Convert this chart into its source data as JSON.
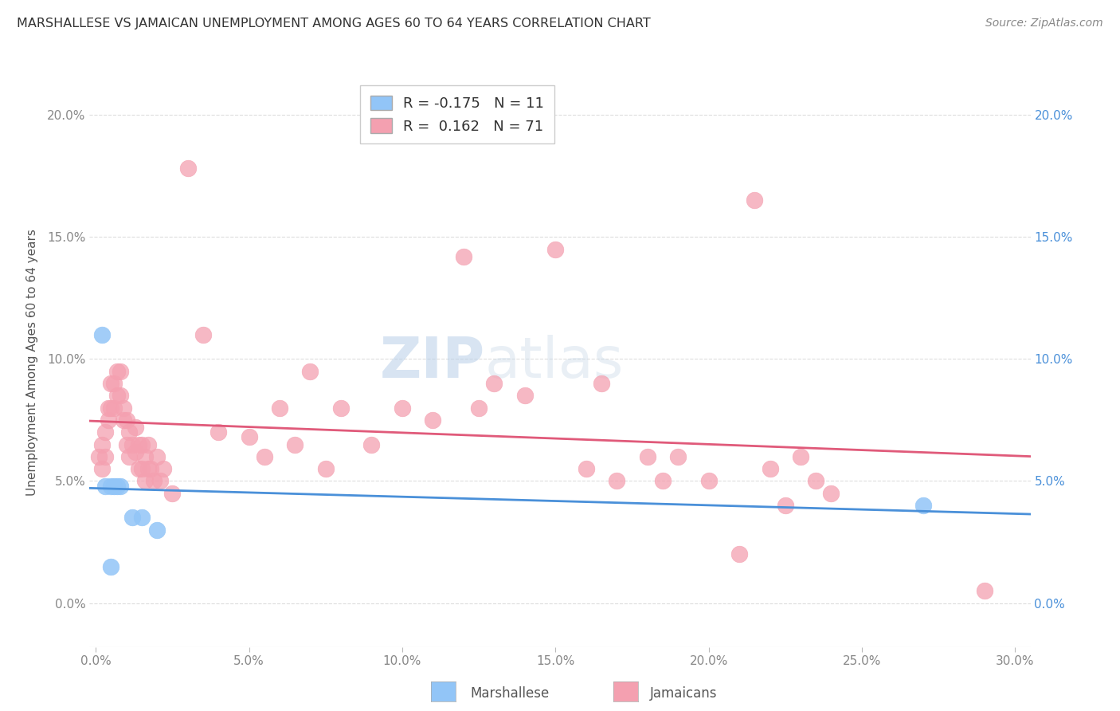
{
  "title": "MARSHALLESE VS JAMAICAN UNEMPLOYMENT AMONG AGES 60 TO 64 YEARS CORRELATION CHART",
  "source": "Source: ZipAtlas.com",
  "ylabel": "Unemployment Among Ages 60 to 64 years",
  "xlabel_ticks": [
    "0.0%",
    "5.0%",
    "10.0%",
    "15.0%",
    "20.0%",
    "25.0%",
    "30.0%"
  ],
  "xlabel_vals": [
    0.0,
    0.05,
    0.1,
    0.15,
    0.2,
    0.25,
    0.3
  ],
  "ylabel_ticks": [
    "0.0%",
    "5.0%",
    "10.0%",
    "15.0%",
    "20.0%"
  ],
  "ylabel_vals": [
    0.0,
    0.05,
    0.1,
    0.15,
    0.2
  ],
  "xlim": [
    -0.002,
    0.305
  ],
  "ylim": [
    -0.018,
    0.215
  ],
  "marshallese_R": "-0.175",
  "marshallese_N": "11",
  "jamaicans_R": "0.162",
  "jamaicans_N": "71",
  "marshallese_color": "#92c5f7",
  "jamaicans_color": "#f4a0b0",
  "marshallese_line_color": "#4a90d9",
  "jamaicans_line_color": "#e05a7a",
  "background_color": "#ffffff",
  "grid_color": "#dddddd",
  "title_color": "#333333",
  "right_axis_color": "#4a90d9",
  "left_axis_color": "#888888",
  "watermark_zip": "ZIP",
  "watermark_atlas": "atlas",
  "marshallese_x": [
    0.002,
    0.003,
    0.005,
    0.006,
    0.007,
    0.008,
    0.012,
    0.015,
    0.02,
    0.27,
    0.005
  ],
  "marshallese_y": [
    0.11,
    0.048,
    0.048,
    0.048,
    0.048,
    0.048,
    0.035,
    0.035,
    0.03,
    0.04,
    0.015
  ],
  "jamaicans_x": [
    0.001,
    0.002,
    0.002,
    0.003,
    0.003,
    0.004,
    0.004,
    0.005,
    0.005,
    0.006,
    0.006,
    0.007,
    0.007,
    0.008,
    0.008,
    0.009,
    0.009,
    0.01,
    0.01,
    0.011,
    0.011,
    0.012,
    0.013,
    0.013,
    0.014,
    0.014,
    0.015,
    0.015,
    0.016,
    0.016,
    0.017,
    0.017,
    0.018,
    0.019,
    0.02,
    0.021,
    0.022,
    0.025,
    0.03,
    0.035,
    0.04,
    0.05,
    0.055,
    0.06,
    0.065,
    0.07,
    0.075,
    0.08,
    0.09,
    0.1,
    0.11,
    0.12,
    0.125,
    0.13,
    0.14,
    0.15,
    0.16,
    0.165,
    0.17,
    0.18,
    0.185,
    0.19,
    0.2,
    0.21,
    0.215,
    0.22,
    0.225,
    0.23,
    0.235,
    0.24,
    0.29
  ],
  "jamaicans_y": [
    0.06,
    0.065,
    0.055,
    0.07,
    0.06,
    0.08,
    0.075,
    0.09,
    0.08,
    0.09,
    0.08,
    0.095,
    0.085,
    0.095,
    0.085,
    0.08,
    0.075,
    0.075,
    0.065,
    0.07,
    0.06,
    0.065,
    0.072,
    0.062,
    0.065,
    0.055,
    0.065,
    0.055,
    0.06,
    0.05,
    0.065,
    0.055,
    0.055,
    0.05,
    0.06,
    0.05,
    0.055,
    0.045,
    0.178,
    0.11,
    0.07,
    0.068,
    0.06,
    0.08,
    0.065,
    0.095,
    0.055,
    0.08,
    0.065,
    0.08,
    0.075,
    0.142,
    0.08,
    0.09,
    0.085,
    0.145,
    0.055,
    0.09,
    0.05,
    0.06,
    0.05,
    0.06,
    0.05,
    0.02,
    0.165,
    0.055,
    0.04,
    0.06,
    0.05,
    0.045,
    0.005
  ]
}
